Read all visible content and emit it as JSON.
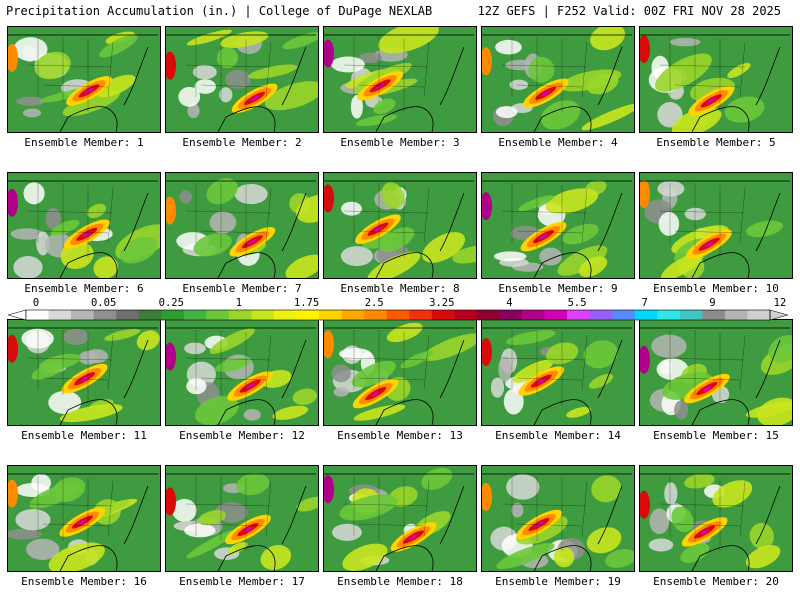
{
  "header": {
    "left": "Precipitation Accumulation (in.) | College of DuPage NEXLAB",
    "right": "12Z GEFS | F252 Valid: 00Z FRI NOV 28 2025"
  },
  "caption_prefix": "Ensemble Member: ",
  "members": [
    {
      "label": "Ensemble Member: 1"
    },
    {
      "label": "Ensemble Member: 2"
    },
    {
      "label": "Ensemble Member: 3"
    },
    {
      "label": "Ensemble Member: 4"
    },
    {
      "label": "Ensemble Member: 5"
    },
    {
      "label": "Ensemble Member: 6"
    },
    {
      "label": "Ensemble Member: 7"
    },
    {
      "label": "Ensemble Member: 8"
    },
    {
      "label": "Ensemble Member: 9"
    },
    {
      "label": "Ensemble Member: 10"
    },
    {
      "label": "Ensemble Member: 11"
    },
    {
      "label": "Ensemble Member: 12"
    },
    {
      "label": "Ensemble Member: 13"
    },
    {
      "label": "Ensemble Member: 14"
    },
    {
      "label": "Ensemble Member: 15"
    },
    {
      "label": "Ensemble Member: 16"
    },
    {
      "label": "Ensemble Member: 17"
    },
    {
      "label": "Ensemble Member: 18"
    },
    {
      "label": "Ensemble Member: 19"
    },
    {
      "label": "Ensemble Member: 20"
    }
  ],
  "colorbar": {
    "unit": "in.",
    "tick_labels": [
      "0",
      "0.05",
      "0.25",
      "1",
      "1.75",
      "2.5",
      "3.25",
      "4",
      "5.5",
      "7",
      "9",
      "12"
    ],
    "colors": [
      "#ffffff",
      "#d9d9d9",
      "#b5b5b5",
      "#8f8f8f",
      "#6e6e6e",
      "#3a7d3a",
      "#2f9a2f",
      "#44b244",
      "#6cc83a",
      "#9ad62a",
      "#c8e61e",
      "#eef214",
      "#fff200",
      "#ffd400",
      "#ffaa00",
      "#ff8a00",
      "#ff5a00",
      "#f03010",
      "#d80a0a",
      "#b8001e",
      "#8f0030",
      "#8a0060",
      "#b0008a",
      "#d400b8",
      "#e040ff",
      "#9a60ff",
      "#5a8aff",
      "#00d8ff",
      "#30e6e6",
      "#40c4c4",
      "#8c8c8c",
      "#b4b4b4",
      "#d0d0d0"
    ]
  }
}
